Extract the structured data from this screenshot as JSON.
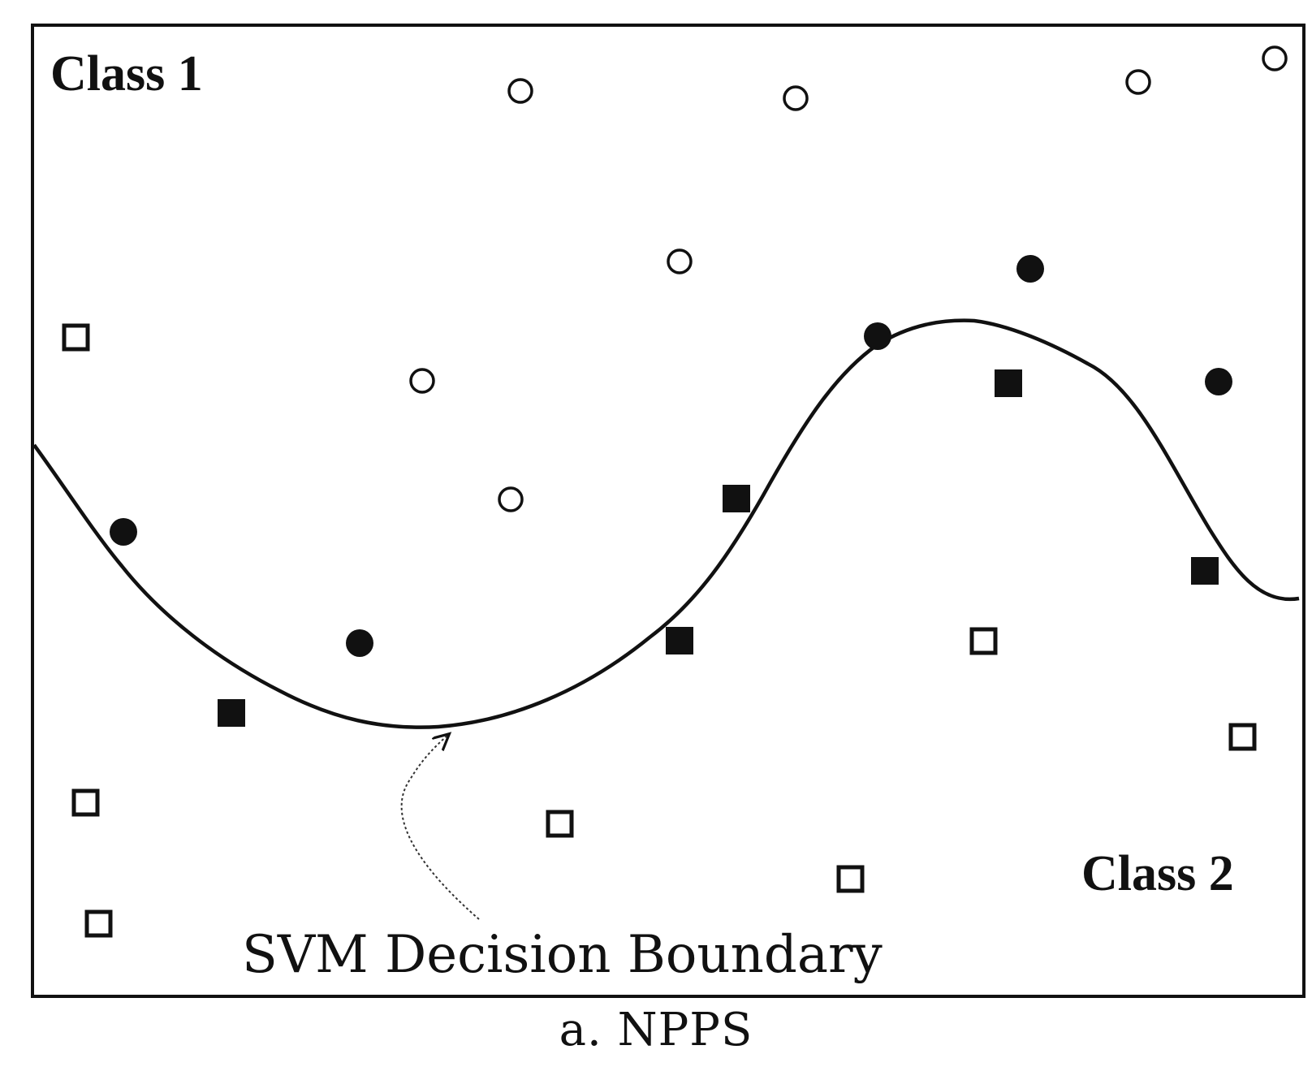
{
  "figure": {
    "class1_label": "Class 1",
    "class2_label": "Class 2",
    "annotation_label": "SVM Decision Boundary",
    "caption": "a. NPPS"
  },
  "colors": {
    "ink": "#111111",
    "background": "#ffffff"
  }
}
